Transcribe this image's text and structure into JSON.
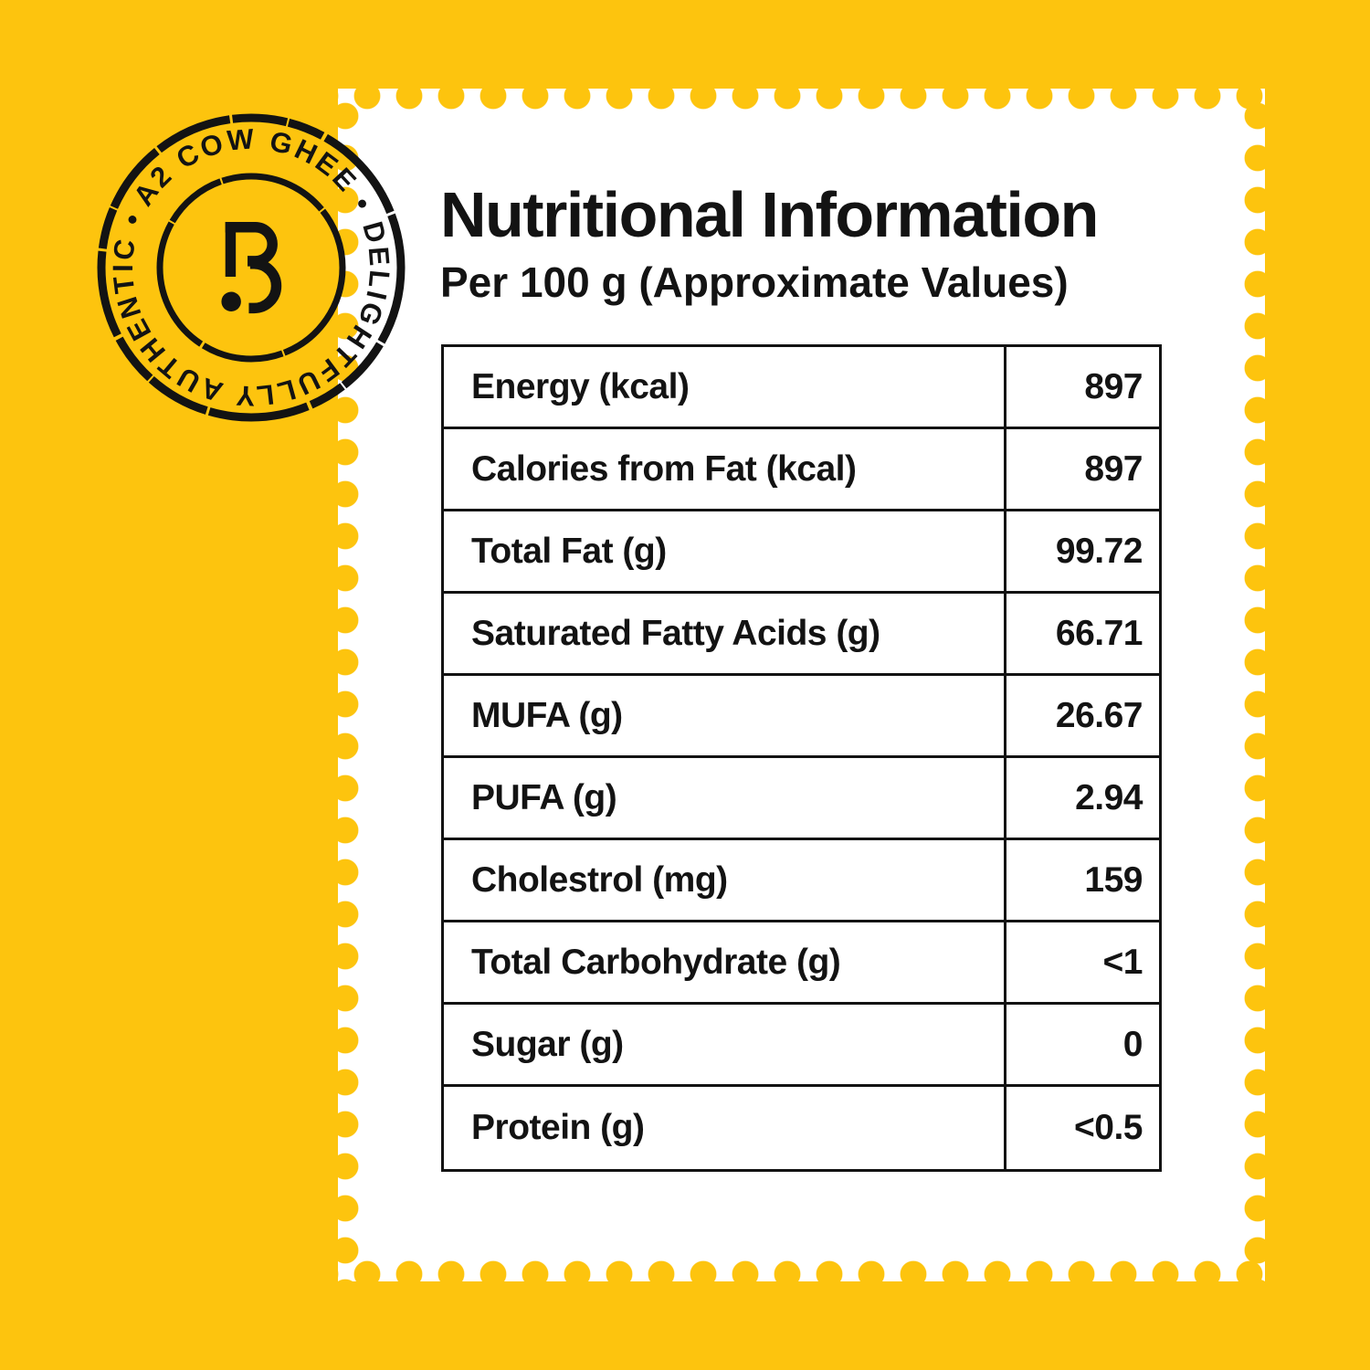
{
  "theme": {
    "yellow": "#FDC40E",
    "ink": "#131313",
    "card": "#FFFFFF"
  },
  "badge": {
    "ring_text": "A2 COW GHEE • DELIGHTFULLY AUTHENTIC •",
    "logo_mark": "broken-B-with-dot"
  },
  "header": {
    "title": "Nutritional Information",
    "subtitle": "Per 100 g (Approximate Values)"
  },
  "table": {
    "rows": [
      {
        "label": "Energy (kcal)",
        "value": "897"
      },
      {
        "label": "Calories from Fat (kcal)",
        "value": "897"
      },
      {
        "label": "Total Fat (g)",
        "value": "99.72"
      },
      {
        "label": "Saturated Fatty Acids (g)",
        "value": "66.71"
      },
      {
        "label": "MUFA (g)",
        "value": "26.67"
      },
      {
        "label": "PUFA (g)",
        "value": "2.94"
      },
      {
        "label": "Cholestrol (mg)",
        "value": "159"
      },
      {
        "label": "Total Carbohydrate (g)",
        "value": "<1"
      },
      {
        "label": "Sugar (g)",
        "value": "0"
      },
      {
        "label": "Protein (g)",
        "value": "<0.5"
      }
    ]
  }
}
